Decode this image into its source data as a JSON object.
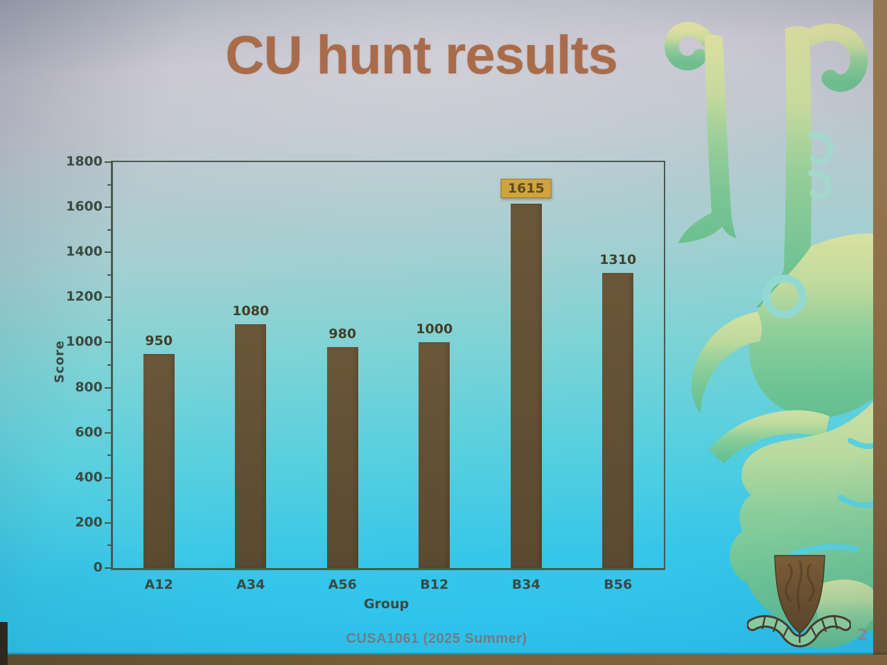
{
  "slide": {
    "title": "CU hunt results",
    "footer": "CUSA1061 (2025 Summer)",
    "page_number": "2"
  },
  "chart_data": {
    "type": "bar",
    "title": "CU hunt results",
    "categories": [
      "A12",
      "A34",
      "A56",
      "B12",
      "B34",
      "B56"
    ],
    "values": [
      950,
      1080,
      980,
      1000,
      1615,
      1310
    ],
    "data_labels": [
      "950",
      "1080",
      "980",
      "1000",
      "1615",
      "1310"
    ],
    "highlighted_label": {
      "index": 4,
      "value": "1615",
      "style": "gold-box"
    },
    "xlabel": "Group",
    "ylabel": "Score",
    "ylim": [
      0,
      1800
    ],
    "ytick_step": 200,
    "yminor_step": 100,
    "ytick_labels": [
      "0",
      "200",
      "400",
      "600",
      "800",
      "1000",
      "1200",
      "1400",
      "1600",
      "1800"
    ],
    "grid": false,
    "legend": false,
    "bar_color": "#6b5738",
    "bar_color_dark": "#594a31"
  },
  "logos": {
    "watermark_icon": "cuhk-phoenix-watermark",
    "shield_icon": "cuhk-shield-emblem"
  },
  "colors": {
    "background_top": "#b9bcc7",
    "background_bottom": "#2ac1ef",
    "title_text": "#a96c4b",
    "axis_line": "#4a5950",
    "tick_text": "#3c4a40",
    "value_label_text": "#413f28",
    "highlight_box_bg": "#cfa43e",
    "highlight_box_text": "#5d4c20",
    "watermark_yellow": "#dfe29a",
    "watermark_green": "#74c48c",
    "footer_text": "#6e7f89",
    "frame_brown": "#8a6b44"
  }
}
